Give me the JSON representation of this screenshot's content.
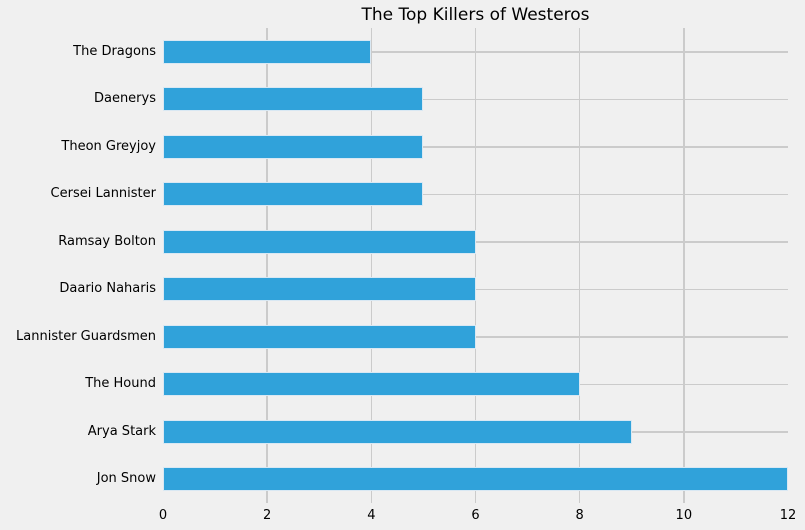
{
  "title": "The Top Killers of Westeros",
  "chart_data": {
    "type": "bar",
    "orientation": "horizontal",
    "title": "The Top Killers of Westeros",
    "categories": [
      "The Dragons",
      "Daenerys",
      "Theon Greyjoy",
      "Cersei Lannister",
      "Ramsay Bolton",
      "Daario Naharis",
      "Lannister Guardsmen",
      "The Hound",
      "Arya Stark",
      "Jon Snow"
    ],
    "values": [
      4,
      5,
      5,
      5,
      6,
      6,
      6,
      8,
      9,
      12
    ],
    "xlabel": "",
    "ylabel": "",
    "xlim": [
      0,
      12
    ],
    "xticks": [
      0,
      2,
      4,
      6,
      8,
      10,
      12
    ],
    "grid": true,
    "legend": "none",
    "colors": {
      "bar": "#30a2da",
      "bar_edge": "#d9e8f3",
      "background": "#f0f0f0",
      "grid": "#cbcbcb",
      "text": "#000000"
    }
  }
}
